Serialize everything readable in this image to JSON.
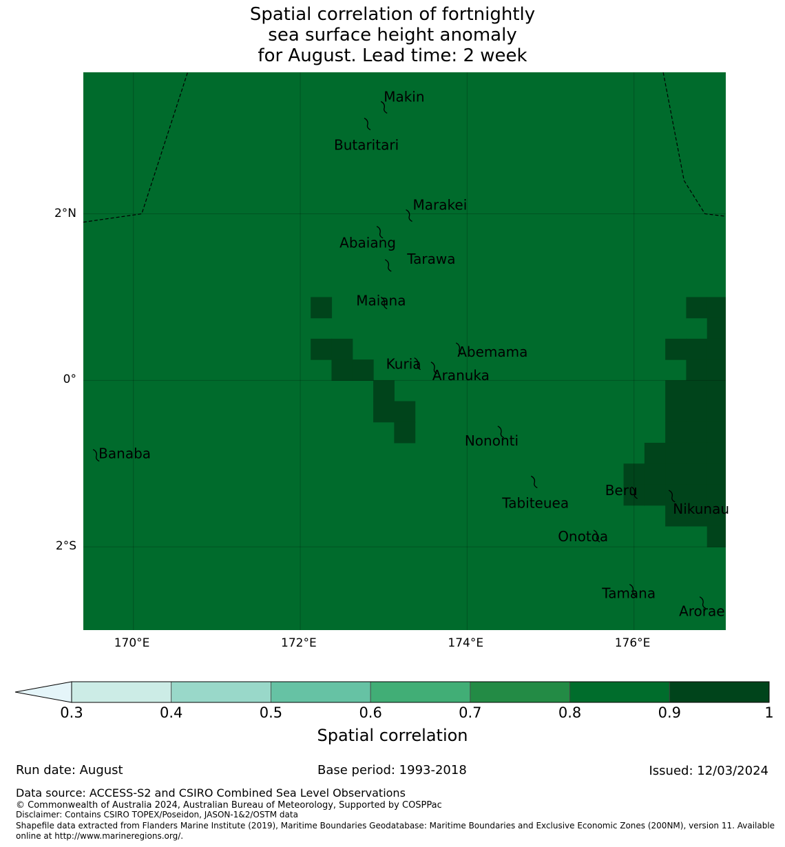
{
  "title_lines": [
    "Spatial correlation of fortnightly",
    "sea surface height anomaly",
    "for August. Lead time: 2 week"
  ],
  "map": {
    "lon_range": [
      169.4,
      177.1
    ],
    "lat_range": [
      -3.0,
      3.7
    ],
    "grid_lons": [
      170,
      172,
      174,
      176
    ],
    "grid_lats": [
      2,
      0,
      -2
    ],
    "x_tick_labels": [
      "170°E",
      "172°E",
      "174°E",
      "176°E"
    ],
    "y_tick_labels": [
      "2°N",
      "0°",
      "2°S"
    ],
    "background_color": "#006b2c",
    "high_color": "#00441b",
    "cell_size_deg": 0.25,
    "high_correlation_cells": [
      {
        "lon": 172.25,
        "lat": 0.875
      },
      {
        "lon": 172.25,
        "lat": 0.375
      },
      {
        "lon": 172.5,
        "lat": 0.375
      },
      {
        "lon": 172.5,
        "lat": 0.125
      },
      {
        "lon": 172.75,
        "lat": 0.125
      },
      {
        "lon": 173.0,
        "lat": -0.125
      },
      {
        "lon": 173.0,
        "lat": -0.375
      },
      {
        "lon": 173.25,
        "lat": -0.375
      },
      {
        "lon": 173.25,
        "lat": -0.625
      },
      {
        "lon": 176.75,
        "lat": 0.875
      },
      {
        "lon": 177.0,
        "lat": 0.875
      },
      {
        "lon": 177.0,
        "lat": 0.625
      },
      {
        "lon": 176.5,
        "lat": 0.375
      },
      {
        "lon": 176.75,
        "lat": 0.375
      },
      {
        "lon": 177.0,
        "lat": 0.375
      },
      {
        "lon": 176.75,
        "lat": 0.125
      },
      {
        "lon": 177.0,
        "lat": 0.125
      },
      {
        "lon": 176.5,
        "lat": -0.125
      },
      {
        "lon": 176.75,
        "lat": -0.125
      },
      {
        "lon": 177.0,
        "lat": -0.125
      },
      {
        "lon": 176.5,
        "lat": -0.375
      },
      {
        "lon": 176.75,
        "lat": -0.375
      },
      {
        "lon": 177.0,
        "lat": -0.375
      },
      {
        "lon": 176.5,
        "lat": -0.625
      },
      {
        "lon": 176.75,
        "lat": -0.625
      },
      {
        "lon": 177.0,
        "lat": -0.625
      },
      {
        "lon": 176.25,
        "lat": -0.875
      },
      {
        "lon": 176.5,
        "lat": -0.875
      },
      {
        "lon": 176.75,
        "lat": -0.875
      },
      {
        "lon": 177.0,
        "lat": -0.875
      },
      {
        "lon": 176.0,
        "lat": -1.125
      },
      {
        "lon": 176.25,
        "lat": -1.125
      },
      {
        "lon": 176.5,
        "lat": -1.125
      },
      {
        "lon": 176.75,
        "lat": -1.125
      },
      {
        "lon": 177.0,
        "lat": -1.125
      },
      {
        "lon": 176.0,
        "lat": -1.375
      },
      {
        "lon": 176.25,
        "lat": -1.375
      },
      {
        "lon": 176.5,
        "lat": -1.375
      },
      {
        "lon": 176.75,
        "lat": -1.375
      },
      {
        "lon": 177.0,
        "lat": -1.375
      },
      {
        "lon": 176.5,
        "lat": -1.625
      },
      {
        "lon": 176.75,
        "lat": -1.625
      },
      {
        "lon": 177.0,
        "lat": -1.625
      },
      {
        "lon": 177.0,
        "lat": -1.875
      }
    ],
    "eez_boundaries": [
      [
        [
          169.4,
          1.9
        ],
        [
          170.1,
          2.0
        ],
        [
          170.65,
          3.7
        ]
      ],
      [
        [
          176.35,
          3.7
        ],
        [
          176.6,
          2.4
        ],
        [
          176.85,
          2.0
        ],
        [
          177.1,
          1.97
        ]
      ]
    ],
    "islands": [
      {
        "name": "Makin",
        "lon": 173.0,
        "lat": 3.3
      },
      {
        "name": "Butaritari",
        "lon": 172.8,
        "lat": 3.1
      },
      {
        "name": "Marakei",
        "lon": 173.3,
        "lat": 2.0
      },
      {
        "name": "Abaiang",
        "lon": 172.95,
        "lat": 1.8
      },
      {
        "name": "Tarawa",
        "lon": 173.05,
        "lat": 1.4
      },
      {
        "name": "Maiana",
        "lon": 173.0,
        "lat": 0.95
      },
      {
        "name": "Abemama",
        "lon": 173.9,
        "lat": 0.4
      },
      {
        "name": "Kuria",
        "lon": 173.4,
        "lat": 0.22
      },
      {
        "name": "Aranuka",
        "lon": 173.6,
        "lat": 0.17
      },
      {
        "name": "Nononti",
        "lon": 174.4,
        "lat": -0.6
      },
      {
        "name": "Banaba",
        "lon": 169.55,
        "lat": -0.88
      },
      {
        "name": "Tabiteuea",
        "lon": 174.8,
        "lat": -1.2
      },
      {
        "name": "Beru",
        "lon": 176.0,
        "lat": -1.33
      },
      {
        "name": "Nikunau",
        "lon": 176.45,
        "lat": -1.37
      },
      {
        "name": "Onotoa",
        "lon": 175.55,
        "lat": -1.85
      },
      {
        "name": "Tamana",
        "lon": 175.98,
        "lat": -2.5
      },
      {
        "name": "Arorae",
        "lon": 176.82,
        "lat": -2.65
      }
    ]
  },
  "colorbar": {
    "ticks": [
      "0.3",
      "0.4",
      "0.5",
      "0.6",
      "0.7",
      "0.8",
      "0.9",
      "1"
    ],
    "colors": [
      "#ccece6",
      "#99d8c9",
      "#66c2a4",
      "#41ae76",
      "#238b45",
      "#006d2c",
      "#00441b"
    ],
    "extend_color": "#e5f5f9",
    "title": "Spatial correlation"
  },
  "footer": {
    "run_date": "Run date: August",
    "base_period": "Base period: 1993-2018",
    "issued": "Issued: 12/03/2024",
    "data_source": "Data source: ACCESS-S2 and CSIRO Combined Sea Level Observations",
    "copyright": "© Commonwealth of Australia 2024, Australian Bureau of Meteorology, Supported by COSPPac",
    "disclaimer": "Disclaimer: Contains CSIRO TOPEX/Poseidon, JASON-1&2/OSTM data",
    "shapefile_line1": "Shapefile data extracted from Flanders Marine Institute (2019), Maritime Boundaries Geodatabase: Maritime Boundaries and Exclusive Economic Zones (200NM), version 11. Available",
    "shapefile_line2": "online at http://www.marineregions.org/."
  }
}
